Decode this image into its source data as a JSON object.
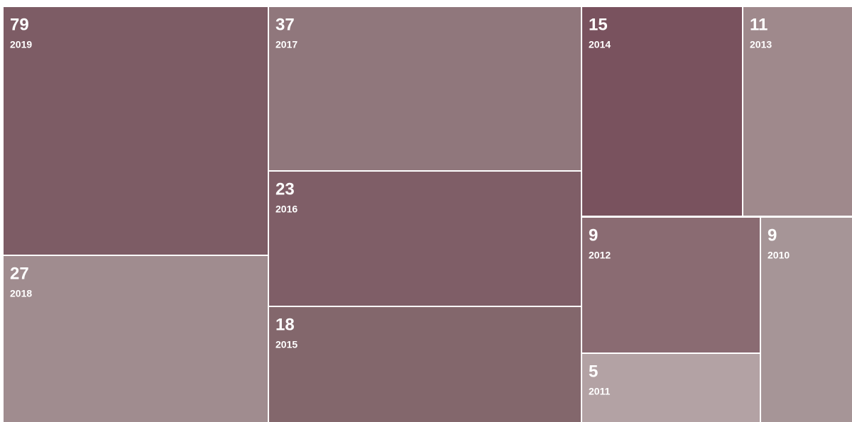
{
  "chart_data": {
    "type": "treemap",
    "categories": [
      "2019",
      "2018",
      "2017",
      "2016",
      "2015",
      "2014",
      "2013",
      "2012",
      "2011",
      "2010"
    ],
    "values": [
      79,
      27,
      37,
      23,
      18,
      15,
      11,
      9,
      5,
      9
    ],
    "colors": [
      "#7d5c65",
      "#a08c8f",
      "#90777c",
      "#7f5e67",
      "#83676c",
      "#79525e",
      "#9f898c",
      "#8a6b72",
      "#b3a2a4",
      "#a69597"
    ]
  }
}
